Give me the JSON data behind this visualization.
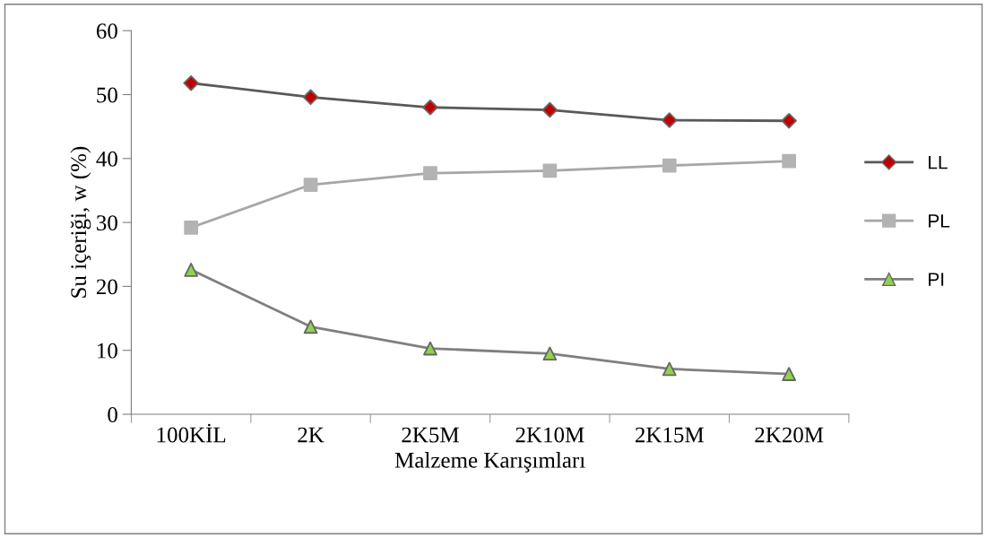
{
  "chart_data": {
    "type": "line",
    "xlabel": "Malzeme Karışımları",
    "ylabel": "Su içeriği, w (%)",
    "categories": [
      "100KİL",
      "2K",
      "2K5M",
      "2K10M",
      "2K15M",
      "2K20M"
    ],
    "series": [
      {
        "name": "LL",
        "color": "#595959",
        "marker": "diamond",
        "colors": [
          "#c00000",
          "#c00000",
          "#c00000",
          "#c00000",
          "#c00000",
          "#c00000"
        ],
        "values": [
          51.8,
          49.6,
          48.0,
          47.6,
          46.0,
          45.9
        ]
      },
      {
        "name": "PL",
        "color": "#a6a6a6",
        "marker": "square",
        "colors": [
          "#b3b3b3",
          "#b3b3b3",
          "#b3b3b3",
          "#b3b3b3",
          "#b3b3b3",
          "#b3b3b3"
        ],
        "values": [
          29.2,
          35.9,
          37.7,
          38.1,
          38.9,
          39.6
        ]
      },
      {
        "name": "PI",
        "color": "#7f7f7f",
        "marker": "triangle",
        "colors": [
          "#92d050",
          "#92d050",
          "#92d050",
          "#92d050",
          "#92d050",
          "#92d050"
        ],
        "values": [
          22.6,
          13.7,
          10.3,
          9.5,
          7.1,
          6.3
        ]
      }
    ],
    "ylim": [
      0,
      60
    ],
    "yticks": [
      0,
      10,
      20,
      30,
      40,
      50,
      60
    ],
    "grid": false,
    "legend": "right"
  }
}
